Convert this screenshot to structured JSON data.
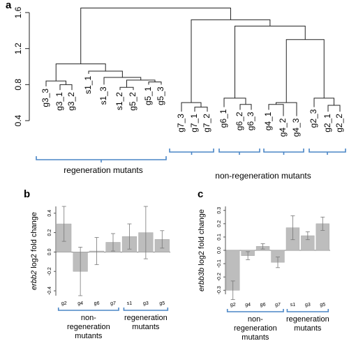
{
  "colors": {
    "line": "#222222",
    "bracket": "#4a86c6",
    "bar": "#bdbdbd",
    "bar_stroke": "#a8a8a8",
    "error": "#777777"
  },
  "chart_data": [
    {
      "panel": "a",
      "type": "dendrogram",
      "yticks": [
        0.4,
        0.8,
        1.2,
        1.6
      ],
      "ylim": [
        0.4,
        1.7
      ],
      "leaves": [
        "g3_3",
        "g3_1",
        "g3_2",
        "s1_1",
        "s1_3",
        "s1_2",
        "g5_2",
        "g5_1",
        "g5_3",
        "g7_3",
        "g7_1",
        "g7_2",
        "g6_1",
        "g6_2",
        "g6_3",
        "g4_1",
        "g4_2",
        "g4_3",
        "g2_3",
        "g2_1",
        "g2_2"
      ],
      "groups": [
        {
          "label": "regeneration mutants"
        },
        {
          "label": "non-regeneration mutants"
        }
      ]
    },
    {
      "panel": "b",
      "type": "bar",
      "ylabel_italic": "erbb2",
      "ylabel_rest": " log2 fold change",
      "categories": [
        "g2",
        "g4",
        "g6",
        "g7",
        "s1",
        "g3",
        "g5"
      ],
      "values": [
        0.29,
        -0.2,
        0.01,
        0.1,
        0.16,
        0.2,
        0.13
      ],
      "errors": [
        0.18,
        0.25,
        0.14,
        0.09,
        0.13,
        0.27,
        0.09
      ],
      "yticks": [
        -0.4,
        -0.2,
        0.0,
        0.2,
        0.4
      ],
      "ylim": [
        -0.45,
        0.47
      ],
      "groups": [
        {
          "label": [
            "non-",
            "regeneration",
            "mutants"
          ]
        },
        {
          "label": [
            "regeneration",
            "mutants"
          ]
        }
      ]
    },
    {
      "panel": "c",
      "type": "bar",
      "ylabel_italic": "erbb3b",
      "ylabel_rest": " log2 fold change",
      "categories": [
        "g2",
        "g4",
        "g6",
        "g7",
        "s1",
        "g3",
        "g5"
      ],
      "values": [
        -0.3,
        -0.04,
        0.03,
        -0.09,
        0.17,
        0.11,
        0.2
      ],
      "errors": [
        0.07,
        0.03,
        0.02,
        0.04,
        0.09,
        0.03,
        0.05
      ],
      "yticks": [
        -0.3,
        -0.2,
        -0.1,
        0.0,
        0.1,
        0.2,
        0.3
      ],
      "ylim": [
        -0.33,
        0.33
      ],
      "groups": [
        {
          "label": [
            "non-",
            "regeneration",
            "mutants"
          ]
        },
        {
          "label": [
            "regeneration",
            "mutants"
          ]
        }
      ]
    }
  ]
}
